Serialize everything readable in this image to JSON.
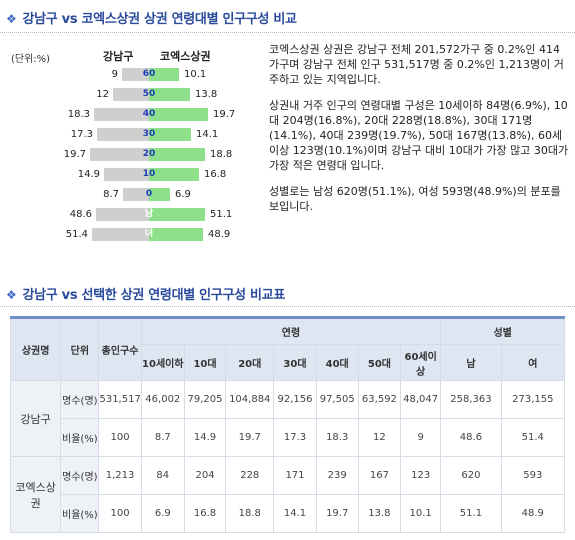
{
  "section1": {
    "title": "강남구 vs 코엑스상권 상권 연령대별 인구구성 비교"
  },
  "pyramid": {
    "unit": "(단위:%)",
    "left_header": "강남구",
    "right_header": "코엑스상권",
    "left_color": "#cfcfcf",
    "right_color": "#8fe08a",
    "rows": [
      {
        "age": "60",
        "left": "9",
        "right": "10.1"
      },
      {
        "age": "50",
        "left": "12",
        "right": "13.8"
      },
      {
        "age": "40",
        "left": "18.3",
        "right": "19.7"
      },
      {
        "age": "30",
        "left": "17.3",
        "right": "14.1"
      },
      {
        "age": "20",
        "left": "19.7",
        "right": "18.8"
      },
      {
        "age": "10",
        "left": "14.9",
        "right": "16.8"
      },
      {
        "age": "0",
        "left": "8.7",
        "right": "6.9"
      },
      {
        "age": "남",
        "left": "48.6",
        "right": "51.1"
      },
      {
        "age": "녀",
        "left": "51.4",
        "right": "48.9"
      }
    ]
  },
  "description": {
    "p1": "코엑스상권 상권은 강남구 전체 201,572가구 중 0.2%인 414가구며 강남구 전체 인구 531,517명 중 0.2%인 1,213명이 거주하고 있는 지역입니다.",
    "p2": "상권내 거주 인구의 연령대별 구성은 10세이하 84명(6.9%), 10대 204명(16.8%), 20대 228명(18.8%), 30대 171명(14.1%), 40대 239명(19.7%), 50대 167명(13.8%), 60세이상 123명(10.1%)이며 강남구 대비 10대가 가장 많고 30대가 가장 적은 연령대 입니다.",
    "p3": "성별로는 남성 620명(51.1%), 여성 593명(48.9%)의 분포를 보입니다."
  },
  "section2": {
    "title": "강남구 vs 선택한 상권 연령대별 인구구성 비교표"
  },
  "table": {
    "header": {
      "name": "상권명",
      "unit": "단위",
      "total": "총인구수",
      "age_group": "연령",
      "gender_group": "성별",
      "ages": [
        "10세이하",
        "10대",
        "20대",
        "30대",
        "40대",
        "50대",
        "60세이상"
      ],
      "genders": [
        "남",
        "여"
      ]
    },
    "regions": [
      {
        "name": "강남구",
        "rows": [
          {
            "unit": "명수(명)",
            "values": [
              "531,517",
              "46,002",
              "79,205",
              "104,884",
              "92,156",
              "97,505",
              "63,592",
              "48,047",
              "258,363",
              "273,155"
            ]
          },
          {
            "unit": "비율(%)",
            "values": [
              "100",
              "8.7",
              "14.9",
              "19.7",
              "17.3",
              "18.3",
              "12",
              "9",
              "48.6",
              "51.4"
            ]
          }
        ]
      },
      {
        "name": "코엑스상권",
        "rows": [
          {
            "unit": "명수(명)",
            "values": [
              "1,213",
              "84",
              "204",
              "228",
              "171",
              "239",
              "167",
              "123",
              "620",
              "593"
            ]
          },
          {
            "unit": "비율(%)",
            "values": [
              "100",
              "6.9",
              "16.8",
              "18.8",
              "14.1",
              "19.7",
              "13.8",
              "10.1",
              "51.1",
              "48.9"
            ]
          }
        ]
      }
    ]
  }
}
